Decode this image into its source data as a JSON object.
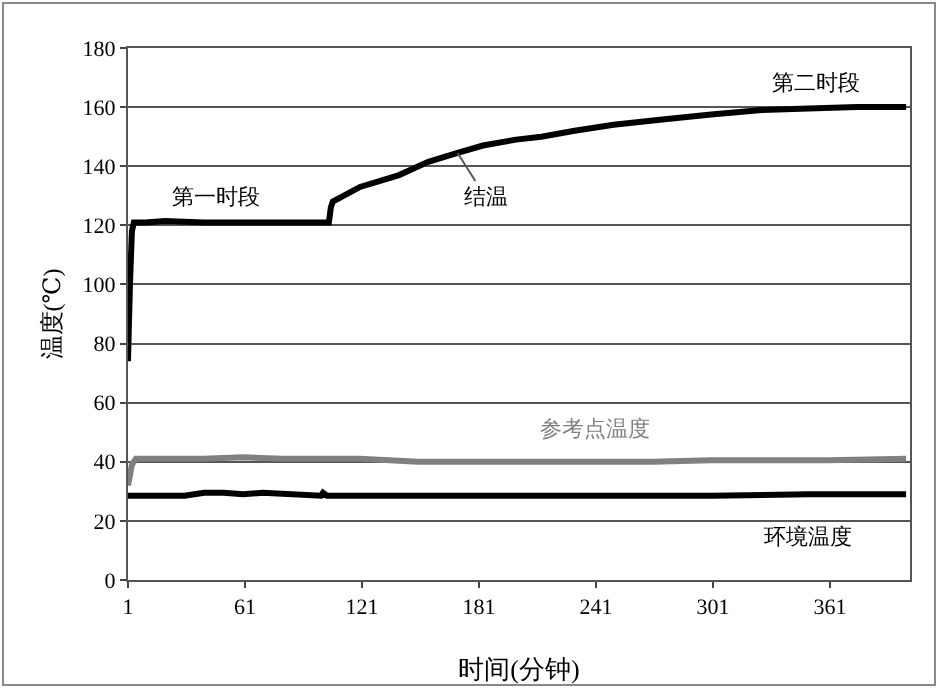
{
  "chart_data": {
    "type": "line",
    "xlabel": "时间(分钟)",
    "ylabel": "温度(℃)",
    "xlim": [
      1,
      402
    ],
    "xticks": [
      1,
      61,
      121,
      181,
      241,
      301,
      361
    ],
    "ylim": [
      0,
      180
    ],
    "yticks": [
      0,
      20,
      40,
      60,
      80,
      100,
      120,
      140,
      160,
      180
    ],
    "grid": "y",
    "legend": false,
    "marker": "none",
    "line_style": "solid",
    "series": [
      {
        "name": "结温",
        "color": "#000000",
        "x": [
          1,
          2,
          3,
          4,
          10,
          20,
          40,
          60,
          80,
          100,
          104,
          105,
          106,
          120,
          140,
          155,
          170,
          183,
          200,
          213,
          230,
          250,
          275,
          300,
          326,
          350,
          375,
          400
        ],
        "values": [
          74,
          100,
          118,
          121,
          121,
          121.5,
          121,
          121,
          121,
          121,
          121,
          126,
          128,
          133,
          137,
          141.5,
          144.5,
          147,
          149,
          150,
          152,
          154,
          155.8,
          157.5,
          159,
          159.5,
          160,
          160
        ]
      },
      {
        "name": "参考点温度",
        "color": "#808080",
        "x": [
          1,
          3,
          5,
          20,
          40,
          60,
          80,
          100,
          120,
          150,
          180,
          210,
          240,
          270,
          300,
          330,
          360,
          400
        ],
        "values": [
          32,
          39,
          41,
          41,
          41,
          41.5,
          41,
          41,
          41,
          40,
          40,
          40,
          40,
          40,
          40.5,
          40.5,
          40.5,
          41
        ]
      },
      {
        "name": "环境温度",
        "color": "#000000",
        "x": [
          1,
          30,
          40,
          50,
          60,
          70,
          100,
          101,
          103,
          150,
          200,
          300,
          350,
          400
        ],
        "values": [
          28.5,
          28.5,
          29.5,
          29.5,
          29,
          29.5,
          28.5,
          29.5,
          28.5,
          28.5,
          28.5,
          28.5,
          29,
          29
        ]
      }
    ],
    "annotations": [
      {
        "text": "第一时段",
        "x": 46,
        "y": 121
      },
      {
        "text": "第二时段",
        "x": 354,
        "y": 160
      }
    ]
  }
}
